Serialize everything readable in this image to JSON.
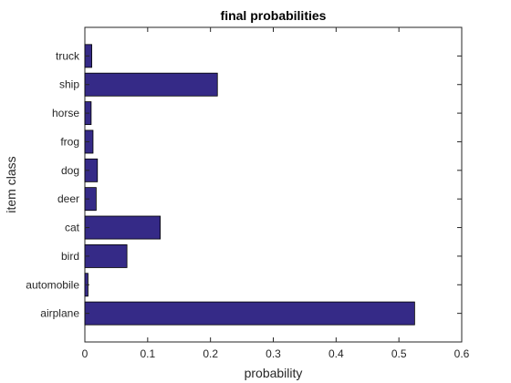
{
  "chart_data": {
    "type": "bar",
    "orientation": "horizontal",
    "title": "final probabilities",
    "xlabel": "probability",
    "ylabel": "item class",
    "categories": [
      "airplane",
      "automobile",
      "bird",
      "cat",
      "deer",
      "dog",
      "frog",
      "horse",
      "ship",
      "truck"
    ],
    "values": [
      0.525,
      0.005,
      0.067,
      0.12,
      0.018,
      0.02,
      0.013,
      0.01,
      0.211,
      0.011
    ],
    "xlim": [
      0,
      0.6
    ],
    "xticks": [
      0,
      0.1,
      0.2,
      0.3,
      0.4,
      0.5,
      0.6
    ],
    "xtick_labels": [
      "0",
      "0.1",
      "0.2",
      "0.3",
      "0.4",
      "0.5",
      "0.6"
    ],
    "grid": false,
    "colors": {
      "bar": "#352a87",
      "axes": "#262626"
    }
  }
}
